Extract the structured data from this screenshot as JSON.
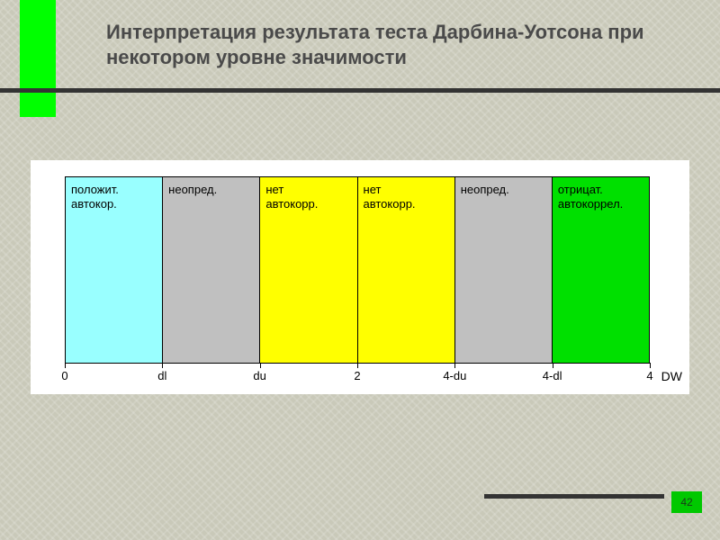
{
  "slide": {
    "background_color": "#c9c9b9",
    "accent_color": "#00ff00",
    "title": "Интерпретация результата теста Дарбина-Уотсона при некотором уровне значимости",
    "title_color": "#4a4a4a",
    "title_fontsize": 22,
    "page_number": "42",
    "page_badge_color": "#00c800",
    "rule_color": "#333333"
  },
  "chart": {
    "type": "region-bar",
    "background_color": "#ffffff",
    "border_color": "#000000",
    "axis_label": "DW",
    "label_fontsize": 13,
    "regions": [
      {
        "label_l1": "положит.",
        "label_l2": "автокор.",
        "color": "#99ffff"
      },
      {
        "label_l1": "неопред.",
        "label_l2": "",
        "color": "#c0c0c0"
      },
      {
        "label_l1": "нет",
        "label_l2": "автокорр.",
        "color": "#ffff00"
      },
      {
        "label_l1": "нет",
        "label_l2": "автокорр.",
        "color": "#ffff00"
      },
      {
        "label_l1": "неопред.",
        "label_l2": "",
        "color": "#c0c0c0"
      },
      {
        "label_l1": "отрицат.",
        "label_l2": "автокоррел.",
        "color": "#00e000"
      }
    ],
    "ticks": [
      {
        "pos": 0.0,
        "label": "0"
      },
      {
        "pos": 0.1667,
        "label": "dl"
      },
      {
        "pos": 0.3333,
        "label": "du"
      },
      {
        "pos": 0.5,
        "label": "2"
      },
      {
        "pos": 0.6667,
        "label": "4-du"
      },
      {
        "pos": 0.8333,
        "label": "4-dl"
      },
      {
        "pos": 1.0,
        "label": "4"
      }
    ]
  }
}
